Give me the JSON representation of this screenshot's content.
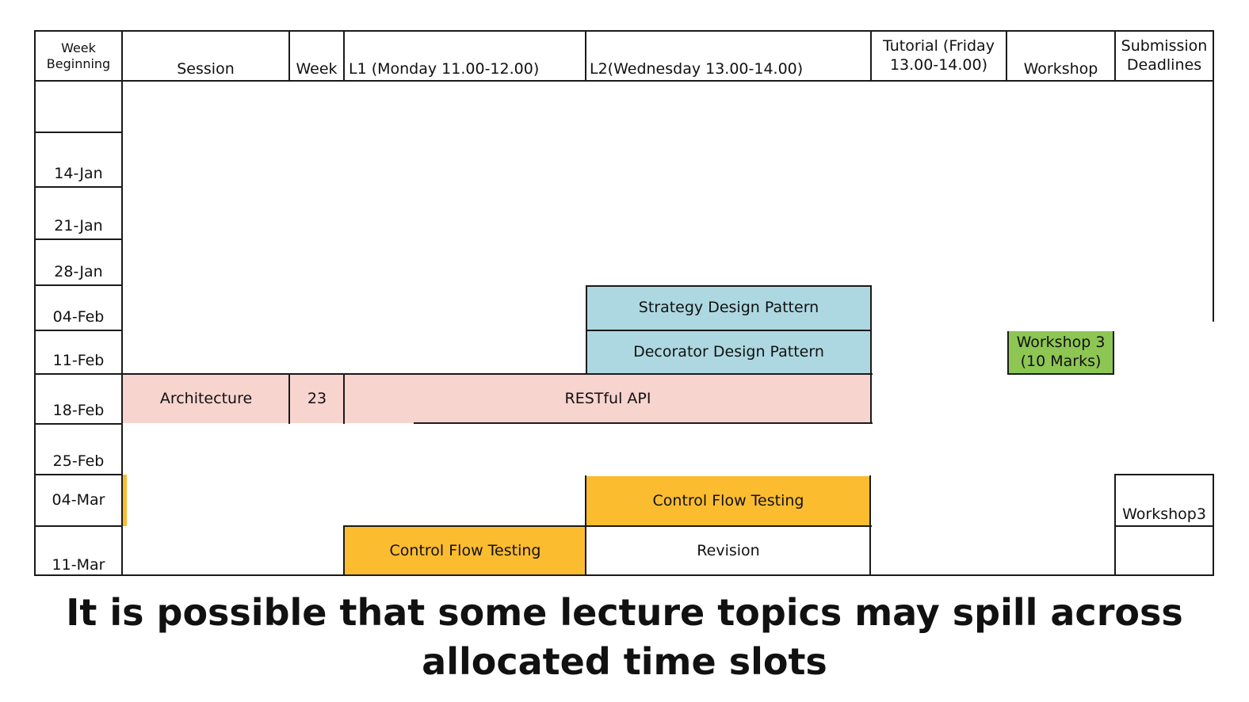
{
  "headers": {
    "week_beginning": "Week\nBeginning",
    "session": "Session",
    "week": "Week",
    "l1": "L1 (Monday 11.00-12.00)",
    "l2": "L2(Wednesday 13.00-14.00)",
    "tutorial": "Tutorial (Friday\n13.00-14.00)",
    "workshop": "Workshop",
    "submission": "Submission\nDeadlines"
  },
  "weeks": [
    "",
    "14-Jan",
    "21-Jan",
    "28-Jan",
    "04-Feb",
    "11-Feb",
    "18-Feb",
    "25-Feb",
    "04-Mar",
    "11-Mar"
  ],
  "blocks": {
    "strategy": "Strategy Design Pattern",
    "decorator": "Decorator Design Pattern",
    "workshop3": "Workshop 3\n(10 Marks)",
    "architecture": "Architecture",
    "week23": "23",
    "restful": "RESTful API",
    "cft_l2": "Control Flow Testing",
    "cft_l1": "Control Flow Testing",
    "revision": "Revision",
    "workshop3_deadline": "Workshop3"
  },
  "colors": {
    "blue": "#add8e1",
    "pink": "#f8d4cf",
    "orange": "#fbbc2f",
    "green": "#8dc653"
  },
  "caption": "It is possible that some lecture topics may spill across\nallocated time slots"
}
